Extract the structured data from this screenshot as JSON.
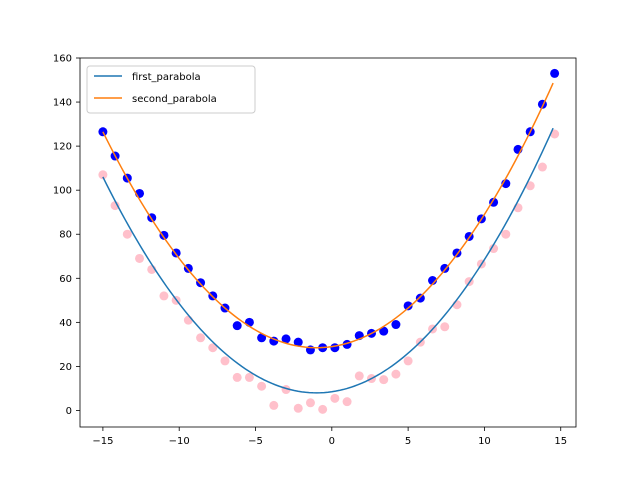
{
  "chart_data": {
    "type": "scatter",
    "title": "",
    "xlabel": "",
    "ylabel": "",
    "xlim": [
      -16.5,
      16.0
    ],
    "ylim": [
      -7.5,
      160.0
    ],
    "xticks": [
      -15,
      -10,
      -5,
      0,
      5,
      10,
      15
    ],
    "yticks": [
      0,
      20,
      40,
      60,
      80,
      100,
      120,
      140,
      160
    ],
    "grid": false,
    "legend": {
      "position": "top-left"
    },
    "lines": [
      {
        "name": "first_parabola",
        "color": "#1f77b4",
        "curve": {
          "a": 0.5,
          "h": -1.0,
          "k": 8.0
        },
        "x_range": [
          -15.0,
          14.5
        ]
      },
      {
        "name": "second_parabola",
        "color": "#ff7f0e",
        "curve": {
          "a": 0.5,
          "h": -1.0,
          "k": 28.5
        },
        "x_range": [
          -15.0,
          14.5
        ]
      }
    ],
    "scatter_series": [
      {
        "color": "#ffc0cb",
        "radius": 4.5,
        "points": [
          [
            -15.0,
            107
          ],
          [
            -14.2,
            93
          ],
          [
            -13.4,
            80
          ],
          [
            -12.6,
            69
          ],
          [
            -11.8,
            64
          ],
          [
            -11.0,
            52
          ],
          [
            -10.2,
            50
          ],
          [
            -9.4,
            41
          ],
          [
            -8.6,
            33
          ],
          [
            -7.8,
            28.5
          ],
          [
            -7.0,
            22.5
          ],
          [
            -6.2,
            15
          ],
          [
            -5.4,
            15
          ],
          [
            -4.6,
            11
          ],
          [
            -3.8,
            2.3
          ],
          [
            -3.0,
            9.5
          ],
          [
            -2.2,
            1
          ],
          [
            -1.4,
            3.5
          ],
          [
            -0.6,
            0.5
          ],
          [
            0.2,
            5.5
          ],
          [
            1.0,
            4
          ],
          [
            1.8,
            15.7
          ],
          [
            2.6,
            14.5
          ],
          [
            3.4,
            14
          ],
          [
            4.2,
            16.5
          ],
          [
            5.0,
            22.5
          ],
          [
            5.8,
            31
          ],
          [
            6.6,
            37
          ],
          [
            7.4,
            38
          ],
          [
            8.2,
            48
          ],
          [
            9.0,
            58.5
          ],
          [
            9.8,
            66.5
          ],
          [
            10.6,
            73.5
          ],
          [
            11.4,
            80
          ],
          [
            12.2,
            92
          ],
          [
            13.0,
            102
          ],
          [
            13.8,
            110.5
          ],
          [
            14.6,
            125.5
          ]
        ]
      },
      {
        "color": "#0000ff",
        "radius": 4.5,
        "points": [
          [
            -15.0,
            126.5
          ],
          [
            -14.2,
            115.5
          ],
          [
            -13.4,
            105.5
          ],
          [
            -12.6,
            98.5
          ],
          [
            -11.8,
            87.5
          ],
          [
            -11.0,
            79.5
          ],
          [
            -10.2,
            71.5
          ],
          [
            -9.4,
            64.5
          ],
          [
            -8.6,
            58
          ],
          [
            -7.8,
            52
          ],
          [
            -7.0,
            46.5
          ],
          [
            -6.2,
            38.5
          ],
          [
            -5.4,
            40
          ],
          [
            -4.6,
            33
          ],
          [
            -3.8,
            31.5
          ],
          [
            -3.0,
            32.5
          ],
          [
            -2.2,
            31
          ],
          [
            -1.4,
            27.5
          ],
          [
            -0.6,
            28.5
          ],
          [
            0.2,
            28.5
          ],
          [
            1.0,
            30
          ],
          [
            1.8,
            34
          ],
          [
            2.6,
            35
          ],
          [
            3.4,
            36
          ],
          [
            4.2,
            39
          ],
          [
            5.0,
            47.5
          ],
          [
            5.8,
            51
          ],
          [
            6.6,
            59
          ],
          [
            7.4,
            64.5
          ],
          [
            8.2,
            71.5
          ],
          [
            9.0,
            79
          ],
          [
            9.8,
            87
          ],
          [
            10.6,
            94.5
          ],
          [
            11.4,
            103
          ],
          [
            12.2,
            118.5
          ],
          [
            13.0,
            126.5
          ],
          [
            13.8,
            139
          ],
          [
            14.6,
            153
          ]
        ]
      }
    ]
  }
}
